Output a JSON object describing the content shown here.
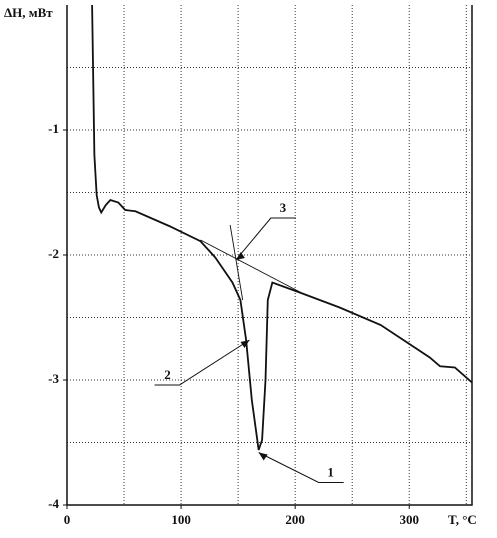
{
  "chart_data": {
    "type": "line",
    "y_label": "ΔH, мВт",
    "x_label": "T, °C",
    "xlim": [
      0,
      355
    ],
    "ylim": [
      -4,
      0
    ],
    "xticks": [
      0,
      100,
      200,
      300
    ],
    "yticks": [
      -1,
      -2,
      -3,
      -4
    ],
    "xgrid": [
      50,
      100,
      150,
      200,
      250,
      300,
      350
    ],
    "ygrid": [
      -3.5,
      -3,
      -2.5,
      -2,
      -1.5,
      -1,
      -0.5
    ],
    "grid": true,
    "series": [
      {
        "color": "#111111",
        "x": [
          22,
          24,
          26,
          28,
          30,
          34,
          38,
          45,
          51,
          60,
          90,
          117,
          130,
          145,
          152,
          157,
          162,
          168,
          171,
          174,
          176,
          180,
          204,
          239,
          275,
          318,
          327,
          340,
          355
        ],
        "values": [
          0,
          -1.2,
          -1.52,
          -1.62,
          -1.66,
          -1.6,
          -1.56,
          -1.58,
          -1.64,
          -1.65,
          -1.77,
          -1.89,
          -2.02,
          -2.22,
          -2.36,
          -2.68,
          -3.16,
          -3.56,
          -3.48,
          -3.0,
          -2.36,
          -2.22,
          -2.3,
          -2.42,
          -2.56,
          -2.82,
          -2.89,
          -2.9,
          -3.02
        ]
      }
    ],
    "guides": [
      {
        "x": [
          117,
          205
        ],
        "values": [
          -1.88,
          -2.3
        ]
      },
      {
        "x": [
          143,
          154
        ],
        "values": [
          -1.76,
          -2.36
        ]
      }
    ],
    "annotations": [
      {
        "text": "1",
        "x": 168,
        "y": -3.58
      },
      {
        "text": "2",
        "x": 160,
        "y": -2.68
      },
      {
        "text": "3",
        "x": 148,
        "y": -2.04
      }
    ]
  }
}
